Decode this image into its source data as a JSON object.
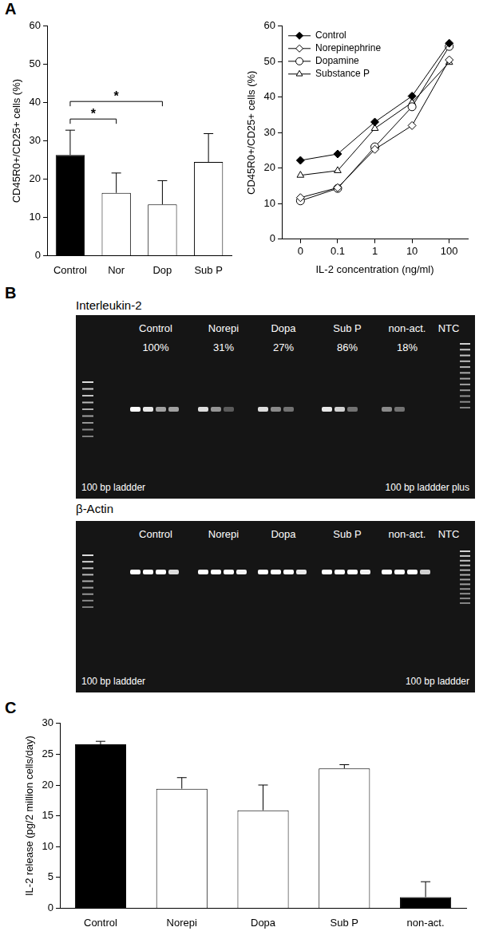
{
  "panel_labels": [
    "A",
    "B",
    "C"
  ],
  "chart_data": [
    {
      "type": "bar",
      "categories": [
        "Control",
        "Nor",
        "Dop",
        "Sub P"
      ],
      "values": [
        26.3,
        16.4,
        13.4,
        24.5
      ],
      "errors": [
        6.5,
        5.2,
        6.2,
        7.4
      ],
      "colors": [
        "#000000",
        "#ffffff",
        "#ffffff",
        "#ffffff"
      ],
      "y_label": "CD45R0+/CD25+ cells (%)",
      "ylim": [
        0,
        60
      ],
      "yticks": [
        0,
        10,
        20,
        30,
        40,
        50,
        60
      ],
      "grid": false,
      "annotations": [
        {
          "from": "Control",
          "to": "Nor",
          "text": "*"
        },
        {
          "from": "Control",
          "to": "Dop",
          "text": "*"
        }
      ]
    },
    {
      "type": "line",
      "categories": [
        "0",
        "0.1",
        "1",
        "10",
        "100"
      ],
      "x_label": "IL-2 concentration (ng/ml)",
      "y_label": "CD45R0+/CD25+ cells (%)",
      "ylim": [
        0,
        60
      ],
      "yticks": [
        0,
        10,
        20,
        30,
        40,
        50,
        60
      ],
      "grid": false,
      "legend": "top-left",
      "series": [
        {
          "name": "Control",
          "color": "#000000",
          "marker": "diamond",
          "values": [
            22.2,
            24.0,
            33.0,
            40.3,
            55.2
          ]
        },
        {
          "name": "Norepinephrine",
          "color": "#000000",
          "marker": "open_diamond",
          "values": [
            11.7,
            14.5,
            25.3,
            32.0,
            50.5
          ]
        },
        {
          "name": "Dopamine",
          "color": "#000000",
          "marker": "open_circle",
          "values": [
            10.8,
            14.3,
            26.0,
            37.3,
            54.3
          ]
        },
        {
          "name": "Substance P",
          "color": "#000000",
          "marker": "open_triangle",
          "values": [
            18.0,
            19.3,
            31.2,
            38.5,
            49.8
          ]
        }
      ]
    },
    {
      "type": "bar",
      "categories": [
        "Control",
        "Norepi",
        "Dopa",
        "Sub P",
        "non-act."
      ],
      "values": [
        26.6,
        19.4,
        15.9,
        22.7,
        1.8
      ],
      "errors": [
        0.5,
        1.8,
        4.1,
        0.6,
        2.5
      ],
      "colors": [
        "#000000",
        "#ffffff",
        "#ffffff",
        "#ffffff",
        "#000000"
      ],
      "y_label": "IL-2 release (pg/2 million cells/day)",
      "ylim": [
        0,
        30
      ],
      "yticks": [
        0,
        5,
        10,
        15,
        20,
        25,
        30
      ],
      "grid": false
    }
  ],
  "gels": [
    {
      "title": "Interleukin-2",
      "lanes": [
        {
          "label": "Control",
          "percent": "100%"
        },
        {
          "label": "Norepi",
          "percent": "31%"
        },
        {
          "label": "Dopa",
          "percent": "27%"
        },
        {
          "label": "Sub P",
          "percent": "86%"
        },
        {
          "label": "non-act.",
          "percent": "18%"
        },
        {
          "label": "NTC"
        }
      ],
      "ladder_left": "100 bp laddder",
      "ladder_right": "100 bp laddder plus"
    },
    {
      "title": "β-Actin",
      "lanes": [
        {
          "label": "Control"
        },
        {
          "label": "Norepi"
        },
        {
          "label": "Dopa"
        },
        {
          "label": "Sub P"
        },
        {
          "label": "non-act."
        },
        {
          "label": "NTC"
        }
      ],
      "ladder_left": "100 bp laddder",
      "ladder_right": "100 bp laddder"
    }
  ]
}
